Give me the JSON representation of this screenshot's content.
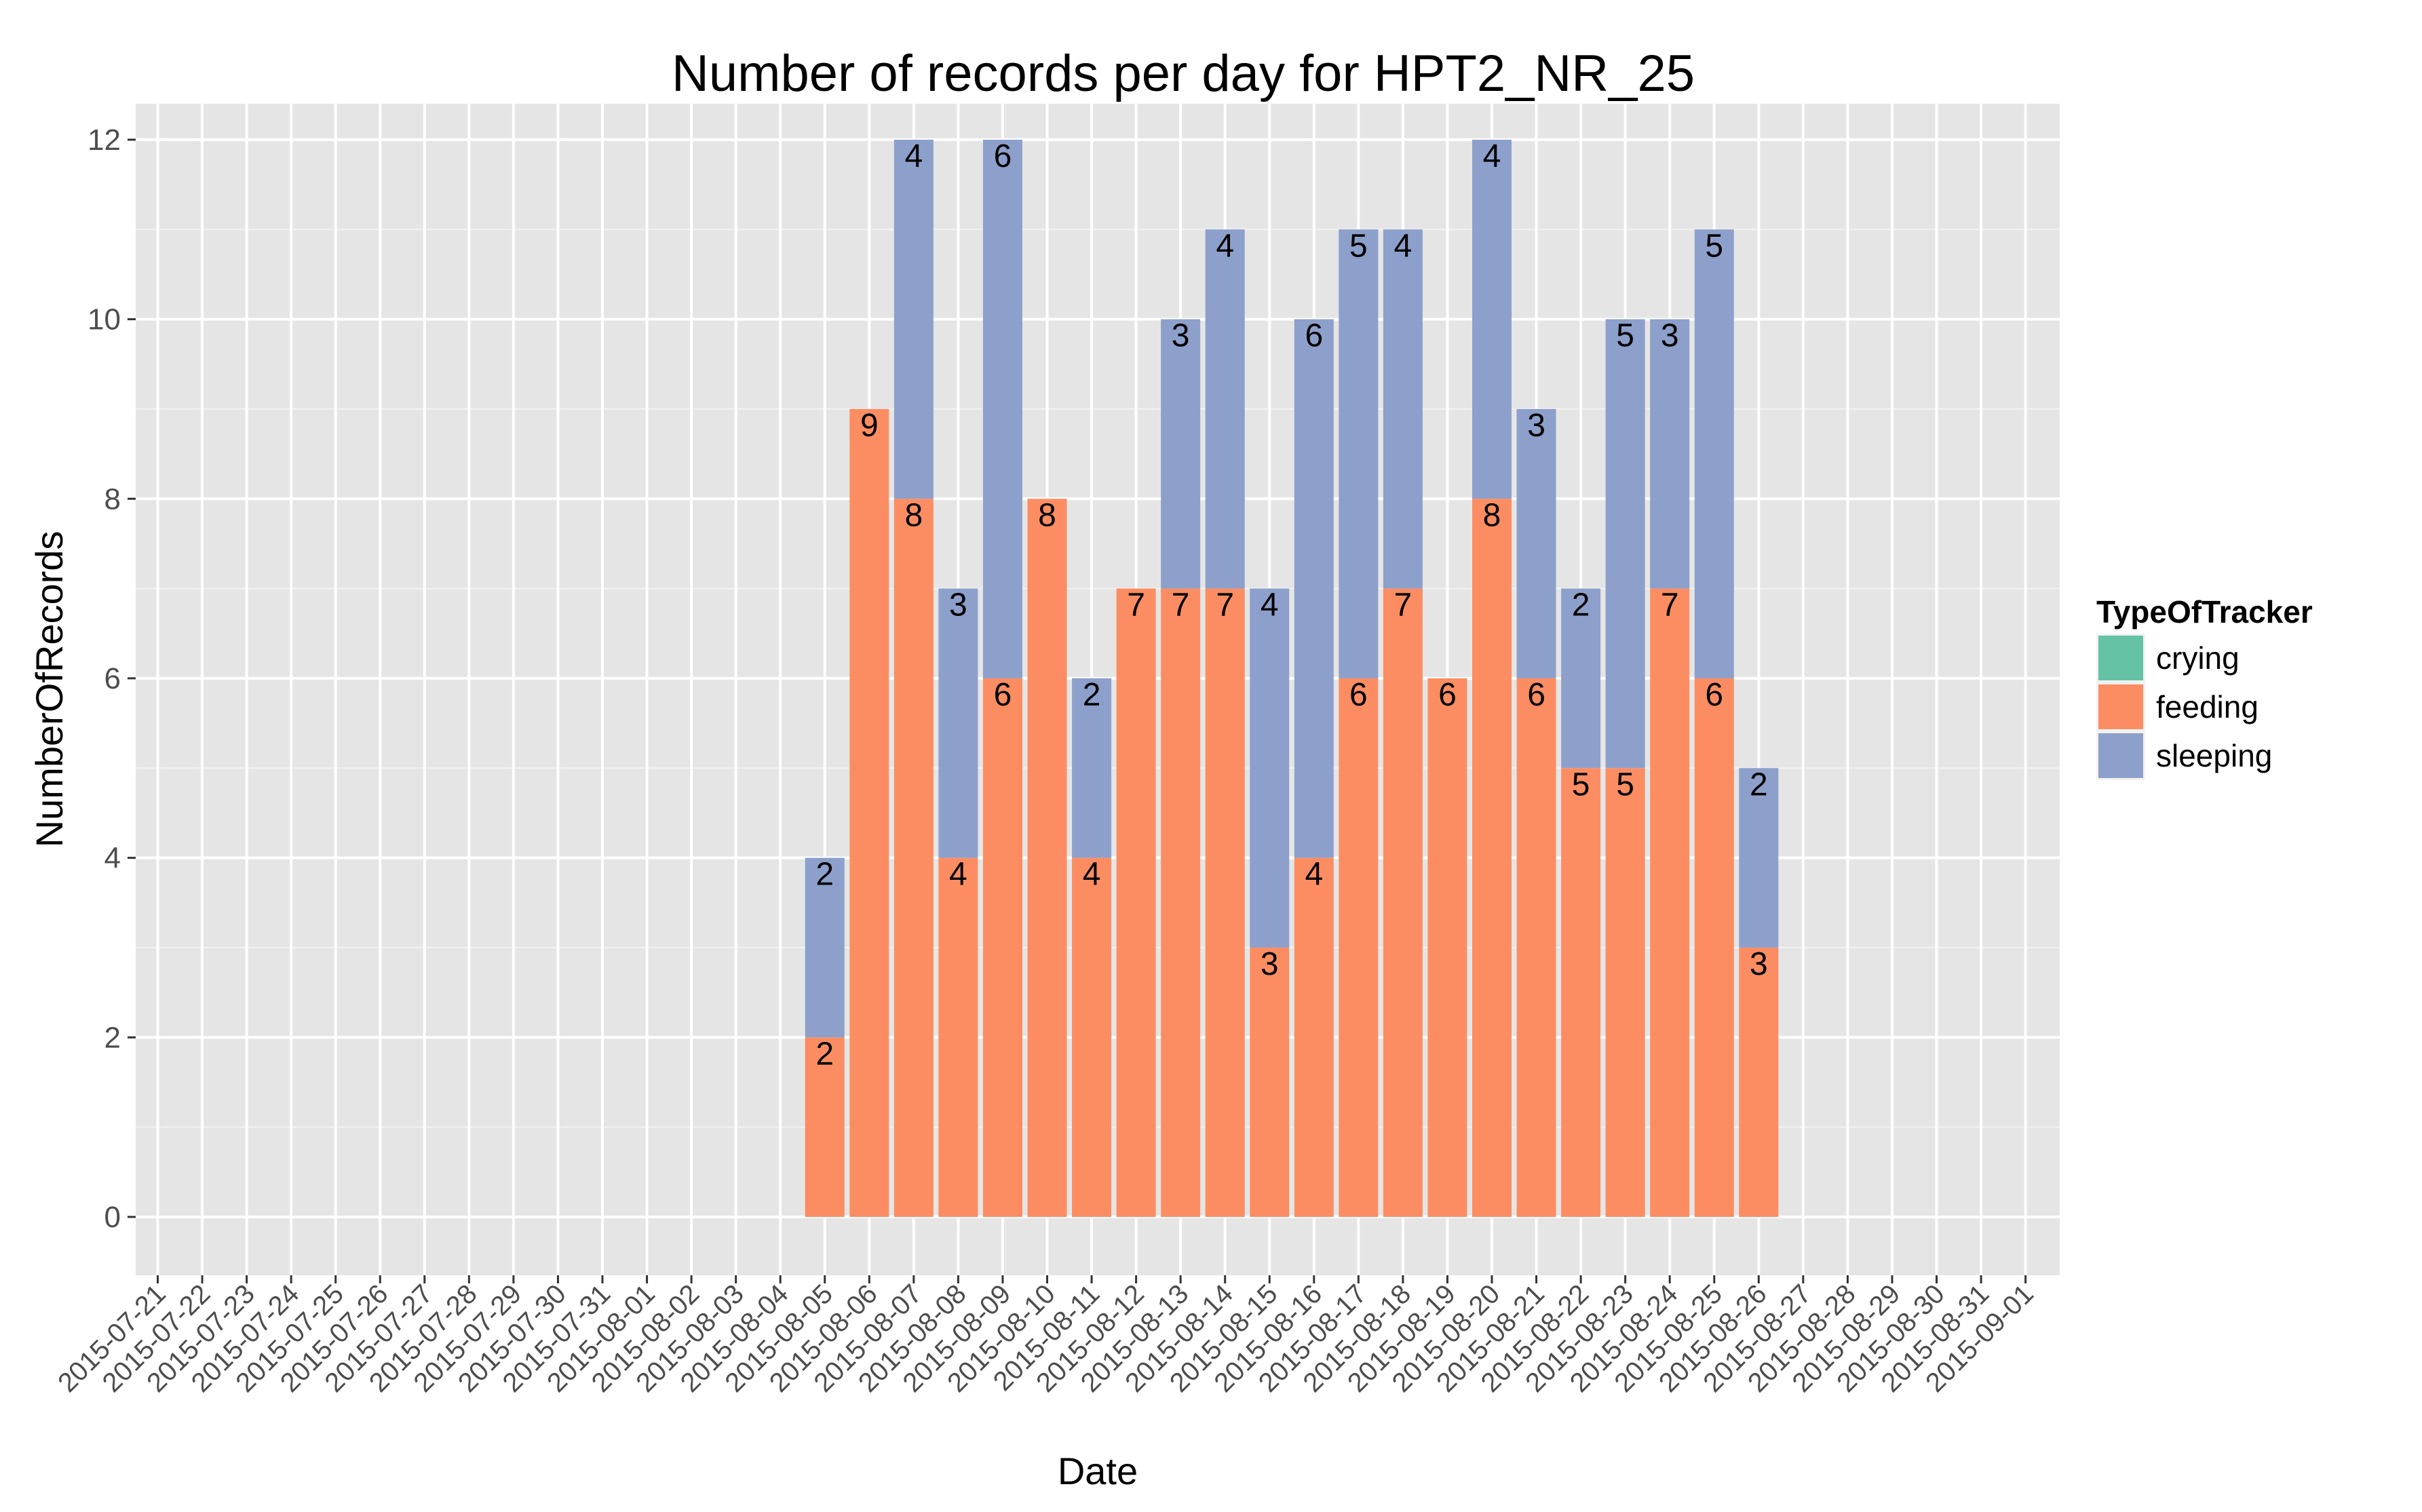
{
  "chart_data": {
    "type": "bar",
    "stacked": true,
    "title": "Number of records per day for HPT2_NR_25",
    "xlabel": "Date",
    "ylabel": "NumberOfRecords",
    "ylim": [
      -0.65,
      12.4
    ],
    "yticks": [
      0,
      2,
      4,
      6,
      8,
      10,
      12
    ],
    "grid": true,
    "legend": {
      "title": "TypeOfTracker",
      "position": "right",
      "entries": [
        "crying",
        "feeding",
        "sleeping"
      ]
    },
    "categories": [
      "2015-07-21",
      "2015-07-22",
      "2015-07-23",
      "2015-07-24",
      "2015-07-25",
      "2015-07-26",
      "2015-07-27",
      "2015-07-28",
      "2015-07-29",
      "2015-07-30",
      "2015-07-31",
      "2015-08-01",
      "2015-08-02",
      "2015-08-03",
      "2015-08-04",
      "2015-08-05",
      "2015-08-06",
      "2015-08-07",
      "2015-08-08",
      "2015-08-09",
      "2015-08-10",
      "2015-08-11",
      "2015-08-12",
      "2015-08-13",
      "2015-08-14",
      "2015-08-15",
      "2015-08-16",
      "2015-08-17",
      "2015-08-18",
      "2015-08-19",
      "2015-08-20",
      "2015-08-21",
      "2015-08-22",
      "2015-08-23",
      "2015-08-24",
      "2015-08-25",
      "2015-08-26",
      "2015-08-27",
      "2015-08-28",
      "2015-08-29",
      "2015-08-30",
      "2015-08-31",
      "2015-09-01"
    ],
    "series": [
      {
        "name": "crying",
        "color": "#66c2a5",
        "values": [
          0,
          0,
          0,
          0,
          0,
          0,
          0,
          0,
          0,
          0,
          0,
          0,
          0,
          0,
          0,
          0,
          0,
          0,
          0,
          0,
          0,
          0,
          0,
          0,
          0,
          0,
          0,
          0,
          0,
          0,
          0,
          0,
          0,
          0,
          0,
          0,
          0,
          0,
          0,
          0,
          0,
          0,
          0
        ]
      },
      {
        "name": "feeding",
        "color": "#fc8d62",
        "values": [
          0,
          0,
          0,
          0,
          0,
          0,
          0,
          0,
          0,
          0,
          0,
          0,
          0,
          0,
          0,
          2,
          9,
          8,
          4,
          6,
          8,
          4,
          7,
          7,
          7,
          3,
          4,
          6,
          7,
          6,
          8,
          6,
          5,
          5,
          7,
          6,
          3,
          0,
          0,
          0,
          0,
          0,
          0
        ]
      },
      {
        "name": "sleeping",
        "color": "#8da0cb",
        "values": [
          0,
          0,
          0,
          0,
          0,
          0,
          0,
          0,
          0,
          0,
          0,
          0,
          0,
          0,
          0,
          2,
          0,
          4,
          3,
          6,
          0,
          2,
          0,
          3,
          4,
          4,
          6,
          5,
          4,
          0,
          4,
          3,
          2,
          5,
          3,
          5,
          2,
          0,
          0,
          0,
          0,
          0,
          0
        ]
      }
    ]
  }
}
